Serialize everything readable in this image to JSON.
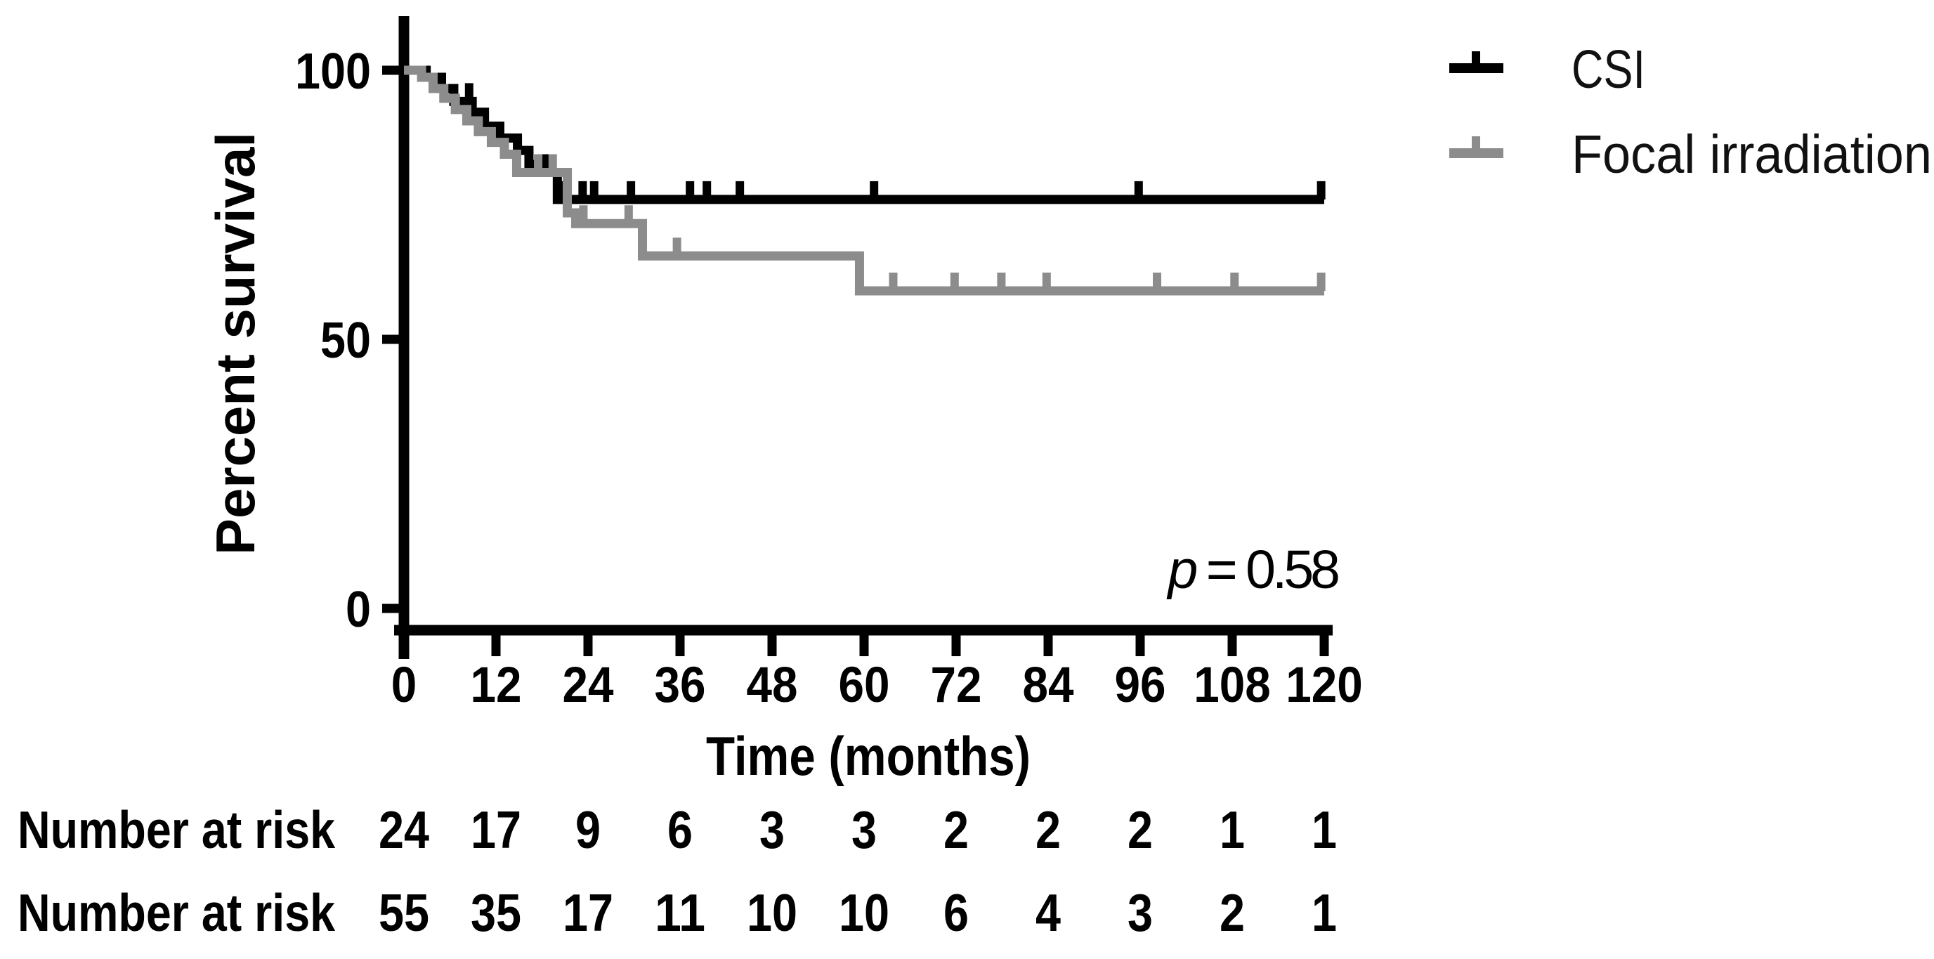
{
  "chart_data": {
    "type": "line",
    "subtype": "kaplan-meier-step-curves",
    "title": "",
    "xlabel": "Time (months)",
    "ylabel": "Percent survival",
    "xlim": [
      0,
      120
    ],
    "ylim": [
      0,
      100
    ],
    "x_ticks": [
      0,
      12,
      24,
      36,
      48,
      60,
      72,
      84,
      96,
      108,
      120
    ],
    "y_ticks": [
      0,
      50,
      100
    ],
    "grid": false,
    "legend_position": "top-right",
    "series": [
      {
        "name": "CSI",
        "color": "#000000",
        "points": [
          [
            0,
            100
          ],
          [
            2.9,
            100
          ],
          [
            2.9,
            98.7
          ],
          [
            4.9,
            98.7
          ],
          [
            4.9,
            96.6
          ],
          [
            6.5,
            96.6
          ],
          [
            6.5,
            94.2
          ],
          [
            8.9,
            94.2
          ],
          [
            8.9,
            92.2
          ],
          [
            10.5,
            92.2
          ],
          [
            10.5,
            89.6
          ],
          [
            12.5,
            89.6
          ],
          [
            12.5,
            87.4
          ],
          [
            14.8,
            87.4
          ],
          [
            14.8,
            85.1
          ],
          [
            16.3,
            85.1
          ],
          [
            16.3,
            82.5
          ],
          [
            17.6,
            82.5
          ],
          [
            17.6,
            81
          ],
          [
            20,
            81
          ],
          [
            20,
            76
          ],
          [
            120,
            76
          ]
        ],
        "censor_marks": [
          [
            8.5,
            94.2
          ],
          [
            18.6,
            81
          ],
          [
            20.9,
            76
          ],
          [
            23.3,
            76
          ],
          [
            24.8,
            76
          ],
          [
            29.6,
            76
          ],
          [
            37.3,
            76
          ],
          [
            39.5,
            76
          ],
          [
            43.8,
            76
          ],
          [
            61.3,
            76
          ],
          [
            95.8,
            76
          ],
          [
            119.6,
            76
          ]
        ]
      },
      {
        "name": "Focal irradiation",
        "color": "#8c8c8c",
        "points": [
          [
            0,
            100
          ],
          [
            2.3,
            100
          ],
          [
            2.3,
            98.7
          ],
          [
            3.8,
            98.7
          ],
          [
            3.8,
            96.6
          ],
          [
            5.2,
            96.6
          ],
          [
            5.2,
            94.8
          ],
          [
            6.7,
            94.8
          ],
          [
            6.7,
            92.7
          ],
          [
            8.2,
            92.7
          ],
          [
            8.2,
            90.6
          ],
          [
            9.7,
            90.6
          ],
          [
            9.7,
            88.6
          ],
          [
            11.4,
            88.6
          ],
          [
            11.4,
            86.6
          ],
          [
            13.1,
            86.6
          ],
          [
            13.1,
            84.4
          ],
          [
            14.7,
            84.4
          ],
          [
            14.7,
            81
          ],
          [
            21.3,
            81
          ],
          [
            21.3,
            73.5
          ],
          [
            22.4,
            73.5
          ],
          [
            22.4,
            71.5
          ],
          [
            31.1,
            71.5
          ],
          [
            31.1,
            65.5
          ],
          [
            59.4,
            65.5
          ],
          [
            59.4,
            59
          ],
          [
            120,
            59
          ]
        ],
        "censor_marks": [
          [
            17.5,
            81
          ],
          [
            19.4,
            81
          ],
          [
            23.4,
            71.5
          ],
          [
            29.3,
            71.5
          ],
          [
            35.6,
            65.5
          ],
          [
            63.8,
            59
          ],
          [
            71.8,
            59
          ],
          [
            77.9,
            59
          ],
          [
            83.8,
            59
          ],
          [
            98.2,
            59
          ],
          [
            108.3,
            59
          ],
          [
            119.6,
            59
          ]
        ]
      }
    ],
    "number_at_risk": {
      "times": [
        0,
        12,
        24,
        36,
        48,
        60,
        72,
        84,
        96,
        108,
        120
      ],
      "rows": [
        {
          "label": "Number at risk",
          "color": "#000000",
          "values": [
            24,
            17,
            9,
            6,
            3,
            3,
            2,
            2,
            2,
            1,
            1
          ]
        },
        {
          "label": "Number at risk",
          "color": "#969696",
          "values": [
            55,
            35,
            17,
            11,
            10,
            10,
            6,
            4,
            3,
            2,
            1
          ]
        }
      ]
    }
  },
  "p_annotation": {
    "text": "p = 0.58",
    "italic_part": "p",
    "rest_part": " = 0.58"
  },
  "legend": {
    "entries": [
      {
        "label": "CSI",
        "color": "#000000"
      },
      {
        "label": "Focal irradiation",
        "color": "#8c8c8c"
      }
    ]
  }
}
